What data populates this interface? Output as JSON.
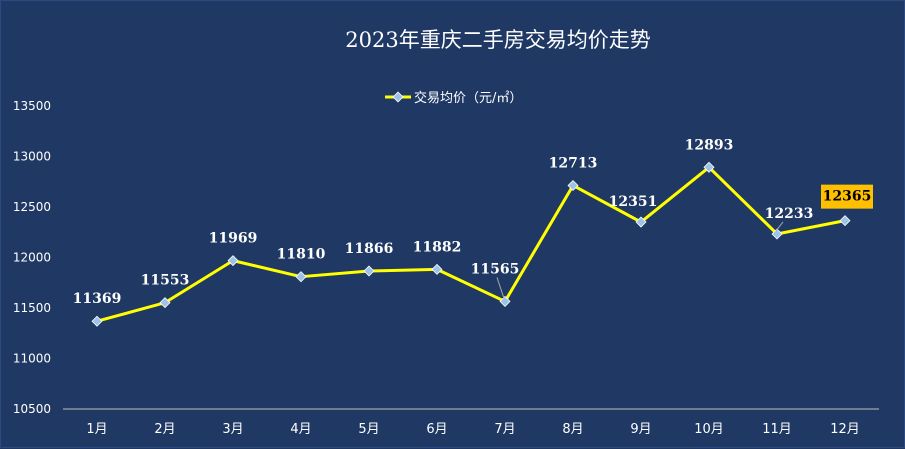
{
  "chart_data": {
    "type": "line",
    "title": "2023年重庆二手房交易均价走势",
    "categories": [
      "1月",
      "2月",
      "3月",
      "4月",
      "5月",
      "6月",
      "7月",
      "8月",
      "9月",
      "10月",
      "11月",
      "12月"
    ],
    "series": [
      {
        "name": "交易均价（元/㎡）",
        "values": [
          11369,
          11553,
          11969,
          11810,
          11866,
          11882,
          11565,
          12713,
          12351,
          12893,
          12233,
          12365
        ],
        "color": "#ffff00",
        "marker_color": "#9dc3e6"
      }
    ],
    "ylim": [
      10500,
      13500
    ],
    "yticks": [
      10500,
      11000,
      11500,
      12000,
      12500,
      13000,
      13500
    ],
    "ytick_labels": [
      "10500",
      "11000",
      "11500",
      "12000",
      "12500",
      "13000",
      "13500"
    ],
    "grid": false,
    "legend_position": "top-center",
    "highlight": {
      "index": 11,
      "background": "#ffc000"
    },
    "background": "#1f3864"
  }
}
